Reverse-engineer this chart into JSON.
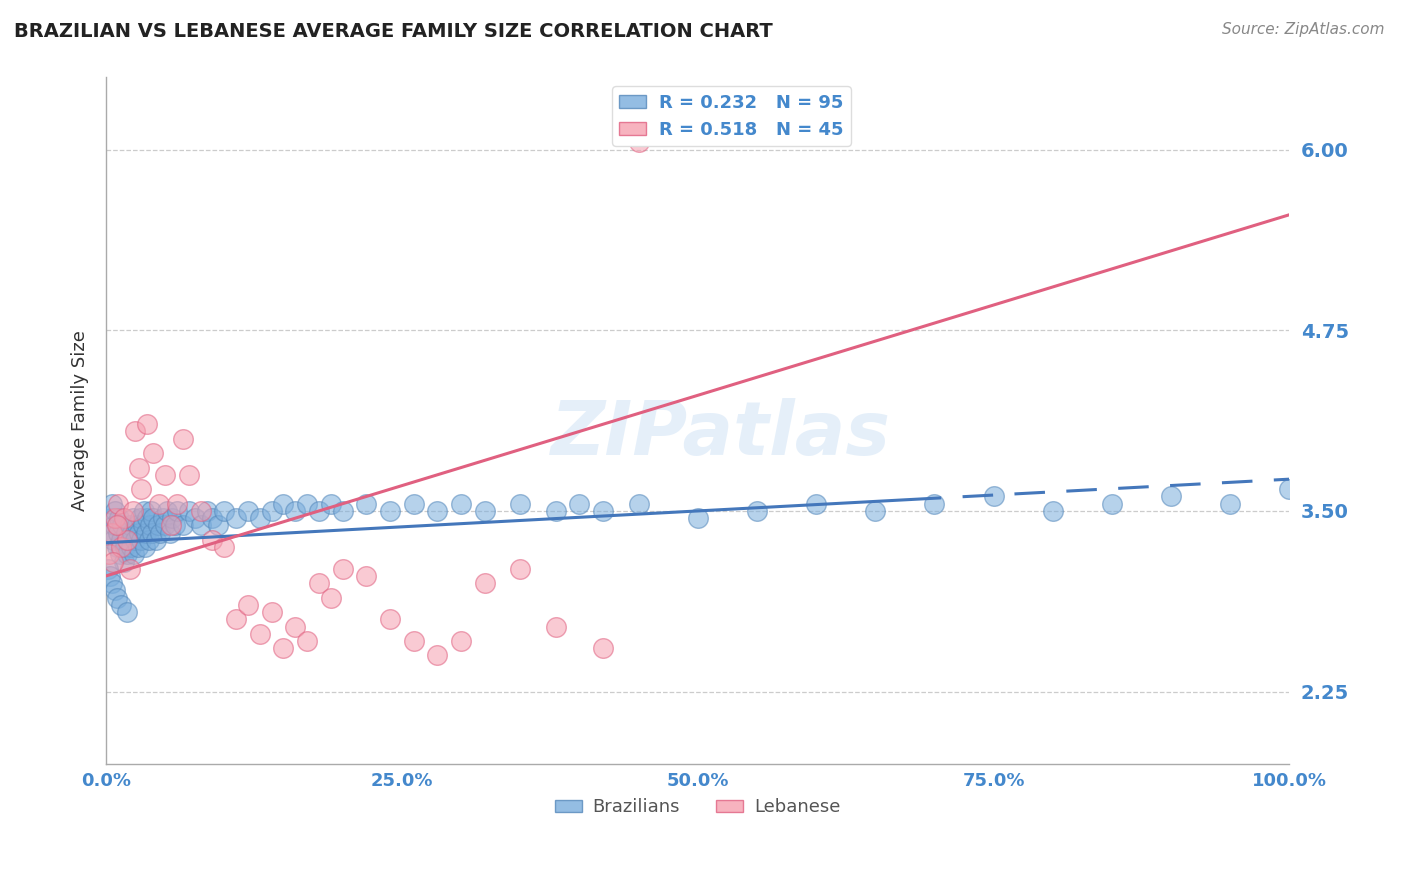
{
  "title": "BRAZILIAN VS LEBANESE AVERAGE FAMILY SIZE CORRELATION CHART",
  "source_text": "Source: ZipAtlas.com",
  "ylabel": "Average Family Size",
  "watermark": "ZIPatlas",
  "yticks": [
    2.25,
    3.5,
    4.75,
    6.0
  ],
  "xticks": [
    0.0,
    25.0,
    50.0,
    75.0,
    100.0
  ],
  "xlim": [
    0,
    100
  ],
  "ylim": [
    1.75,
    6.5
  ],
  "blue_color": "#7AADDC",
  "pink_color": "#F5A0B0",
  "blue_edge_color": "#5588BB",
  "pink_edge_color": "#E06080",
  "blue_line_color": "#4477BB",
  "pink_line_color": "#E06080",
  "axis_tick_color": "#4488CC",
  "grid_color": "#CCCCCC",
  "title_color": "#222222",
  "R_blue": 0.232,
  "N_blue": 95,
  "R_pink": 0.518,
  "N_pink": 45,
  "blue_trend_x0": 0,
  "blue_trend_x1": 100,
  "blue_trend_y0": 3.28,
  "blue_trend_y1": 3.72,
  "blue_solid_end": 68,
  "pink_trend_x0": 0,
  "pink_trend_x1": 100,
  "pink_trend_y0": 3.05,
  "pink_trend_y1": 5.55,
  "blue_scatter_x": [
    0.3,
    0.4,
    0.5,
    0.6,
    0.7,
    0.8,
    0.9,
    1.0,
    1.1,
    1.2,
    1.3,
    1.4,
    1.5,
    1.6,
    1.7,
    1.8,
    1.9,
    2.0,
    2.1,
    2.2,
    2.3,
    2.4,
    2.5,
    2.6,
    2.7,
    2.8,
    2.9,
    3.0,
    3.1,
    3.2,
    3.3,
    3.4,
    3.5,
    3.6,
    3.7,
    3.8,
    3.9,
    4.0,
    4.2,
    4.4,
    4.6,
    4.8,
    5.0,
    5.2,
    5.4,
    5.6,
    5.8,
    6.0,
    6.5,
    7.0,
    7.5,
    8.0,
    8.5,
    9.0,
    9.5,
    10.0,
    11.0,
    12.0,
    13.0,
    14.0,
    15.0,
    16.0,
    17.0,
    18.0,
    19.0,
    20.0,
    22.0,
    24.0,
    26.0,
    28.0,
    30.0,
    32.0,
    35.0,
    38.0,
    40.0,
    42.0,
    45.0,
    50.0,
    55.0,
    60.0,
    65.0,
    70.0,
    75.0,
    80.0,
    85.0,
    90.0,
    95.0,
    100.0,
    0.2,
    0.35,
    0.55,
    0.75,
    0.95,
    1.25,
    1.75
  ],
  "blue_scatter_y": [
    3.35,
    3.45,
    3.55,
    3.3,
    3.4,
    3.5,
    3.25,
    3.35,
    3.45,
    3.2,
    3.3,
    3.4,
    3.15,
    3.25,
    3.35,
    3.2,
    3.3,
    3.4,
    3.25,
    3.35,
    3.45,
    3.2,
    3.3,
    3.4,
    3.25,
    3.35,
    3.45,
    3.3,
    3.4,
    3.5,
    3.25,
    3.35,
    3.45,
    3.3,
    3.4,
    3.5,
    3.35,
    3.45,
    3.3,
    3.4,
    3.35,
    3.45,
    3.4,
    3.5,
    3.35,
    3.45,
    3.4,
    3.5,
    3.4,
    3.5,
    3.45,
    3.4,
    3.5,
    3.45,
    3.4,
    3.5,
    3.45,
    3.5,
    3.45,
    3.5,
    3.55,
    3.5,
    3.55,
    3.5,
    3.55,
    3.5,
    3.55,
    3.5,
    3.55,
    3.5,
    3.55,
    3.5,
    3.55,
    3.5,
    3.55,
    3.5,
    3.55,
    3.45,
    3.5,
    3.55,
    3.5,
    3.55,
    3.6,
    3.5,
    3.55,
    3.6,
    3.55,
    3.65,
    3.1,
    3.05,
    3.0,
    2.95,
    2.9,
    2.85,
    2.8
  ],
  "pink_scatter_x": [
    0.3,
    0.5,
    0.8,
    1.0,
    1.3,
    1.5,
    1.8,
    2.0,
    2.3,
    2.5,
    2.8,
    3.0,
    3.5,
    4.0,
    4.5,
    5.0,
    5.5,
    6.0,
    6.5,
    7.0,
    8.0,
    9.0,
    10.0,
    11.0,
    12.0,
    13.0,
    14.0,
    15.0,
    16.0,
    17.0,
    18.0,
    19.0,
    20.0,
    22.0,
    24.0,
    26.0,
    28.0,
    30.0,
    32.0,
    35.0,
    38.0,
    42.0,
    45.0,
    0.6,
    0.9
  ],
  "pink_scatter_y": [
    3.2,
    3.35,
    3.45,
    3.55,
    3.25,
    3.45,
    3.3,
    3.1,
    3.5,
    4.05,
    3.8,
    3.65,
    4.1,
    3.9,
    3.55,
    3.75,
    3.4,
    3.55,
    4.0,
    3.75,
    3.5,
    3.3,
    3.25,
    2.75,
    2.85,
    2.65,
    2.8,
    2.55,
    2.7,
    2.6,
    3.0,
    2.9,
    3.1,
    3.05,
    2.75,
    2.6,
    2.5,
    2.6,
    3.0,
    3.1,
    2.7,
    2.55,
    6.05,
    3.15,
    3.4
  ]
}
